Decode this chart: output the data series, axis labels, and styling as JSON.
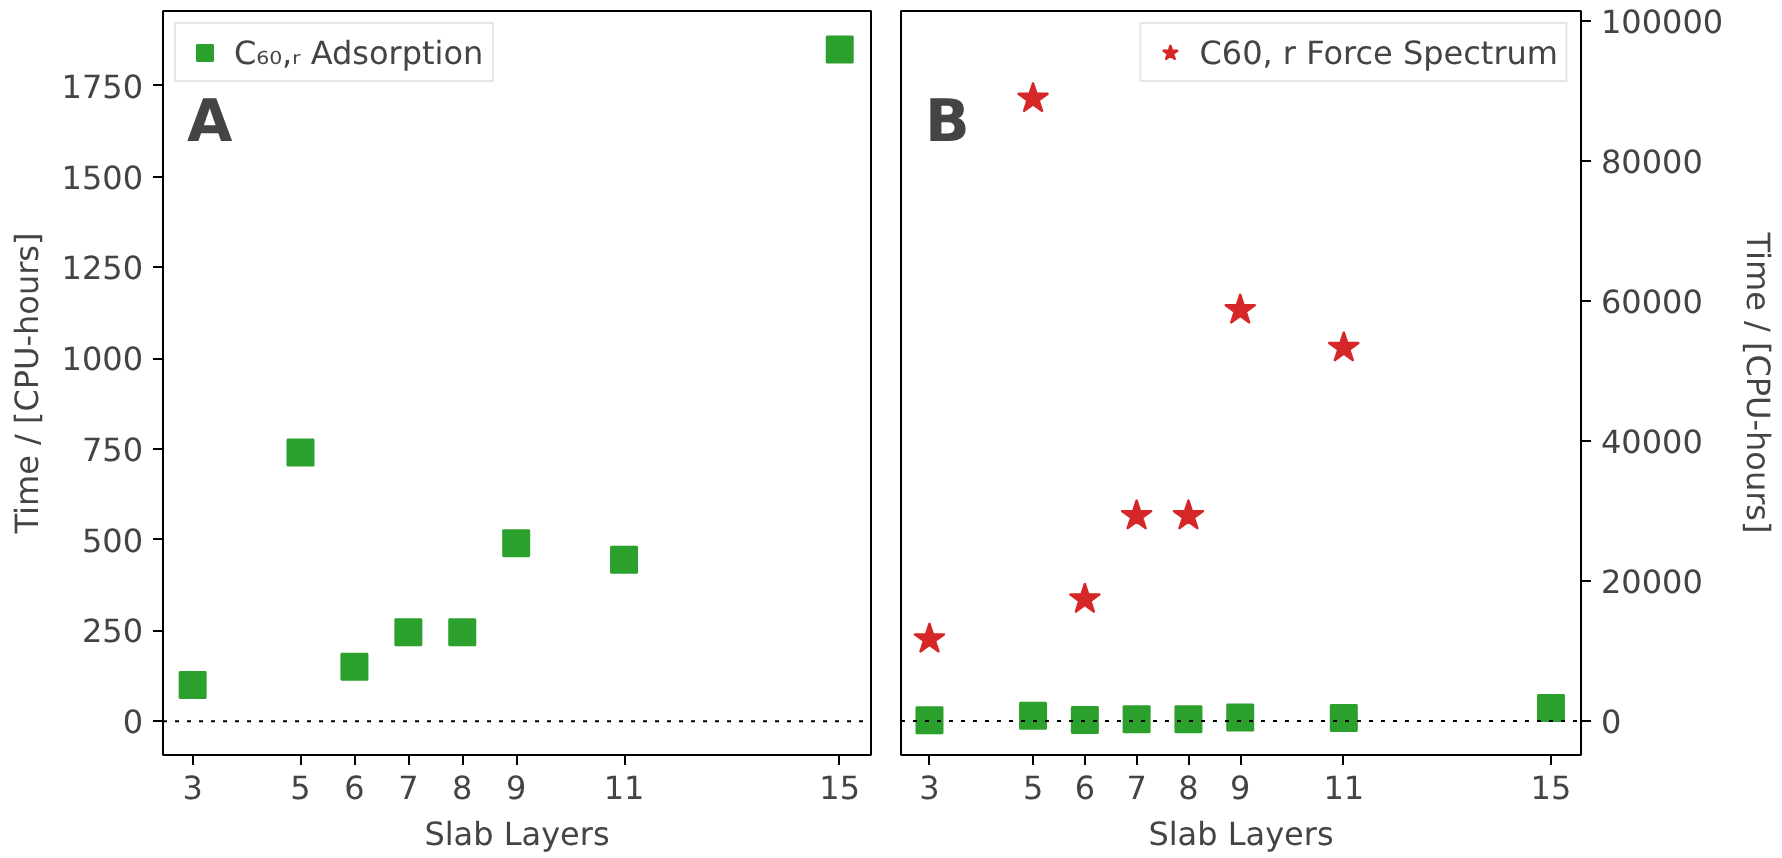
{
  "chart_data": [
    {
      "type": "scatter",
      "xlabel": "Slab Layers",
      "ylabel": "Time / [CPU-hours]",
      "annotations": [
        "A"
      ],
      "x": [
        3,
        5,
        6,
        7,
        8,
        9,
        11,
        15
      ],
      "xlim": [
        2.45,
        15.58
      ],
      "xticks": [
        3,
        5,
        6,
        7,
        8,
        9,
        11,
        15
      ],
      "ylim": [
        -93,
        1956
      ],
      "yticks": [
        0,
        250,
        500,
        750,
        1000,
        1250,
        1500,
        1750
      ],
      "series": [
        {
          "name": "C₆₀,ᵣ Adsorption",
          "color": "#2ca02c",
          "marker": "square",
          "values": [
            100,
            740,
            150,
            245,
            245,
            490,
            445,
            1850
          ]
        }
      ],
      "ref_lines": [
        {
          "axis": "y",
          "value": 0,
          "color": "#000000",
          "line_style": "dotted"
        }
      ],
      "legend": "top left",
      "grid": false
    },
    {
      "type": "scatter",
      "xlabel": "Slab Layers",
      "y2label": "Time / [CPU-hours]",
      "annotations": [
        "B"
      ],
      "x": [
        3,
        5,
        6,
        7,
        8,
        9,
        11,
        15
      ],
      "xlim": [
        2.45,
        15.58
      ],
      "xticks": [
        3,
        5,
        6,
        7,
        8,
        9,
        11,
        15
      ],
      "y2lim": [
        -4850,
        101400
      ],
      "y2ticks": [
        0,
        20000,
        40000,
        60000,
        80000,
        100000
      ],
      "series": [
        {
          "name": "C60, r Force Spectrum",
          "color": "#d62728",
          "marker": "star",
          "axis": "y2",
          "x": [
            3,
            5,
            6,
            7,
            8,
            9,
            11
          ],
          "values": [
            11700,
            88900,
            17400,
            29300,
            29300,
            58700,
            53300
          ]
        },
        {
          "color": "#2ca02c",
          "marker": "square",
          "axis": "y2",
          "values": [
            100,
            740,
            150,
            245,
            245,
            490,
            445,
            1850
          ]
        }
      ],
      "ref_lines": [
        {
          "axis": "y2",
          "value": 0,
          "color": "#000000",
          "line_style": "dotted"
        }
      ],
      "legend": "top right",
      "grid": false
    }
  ]
}
